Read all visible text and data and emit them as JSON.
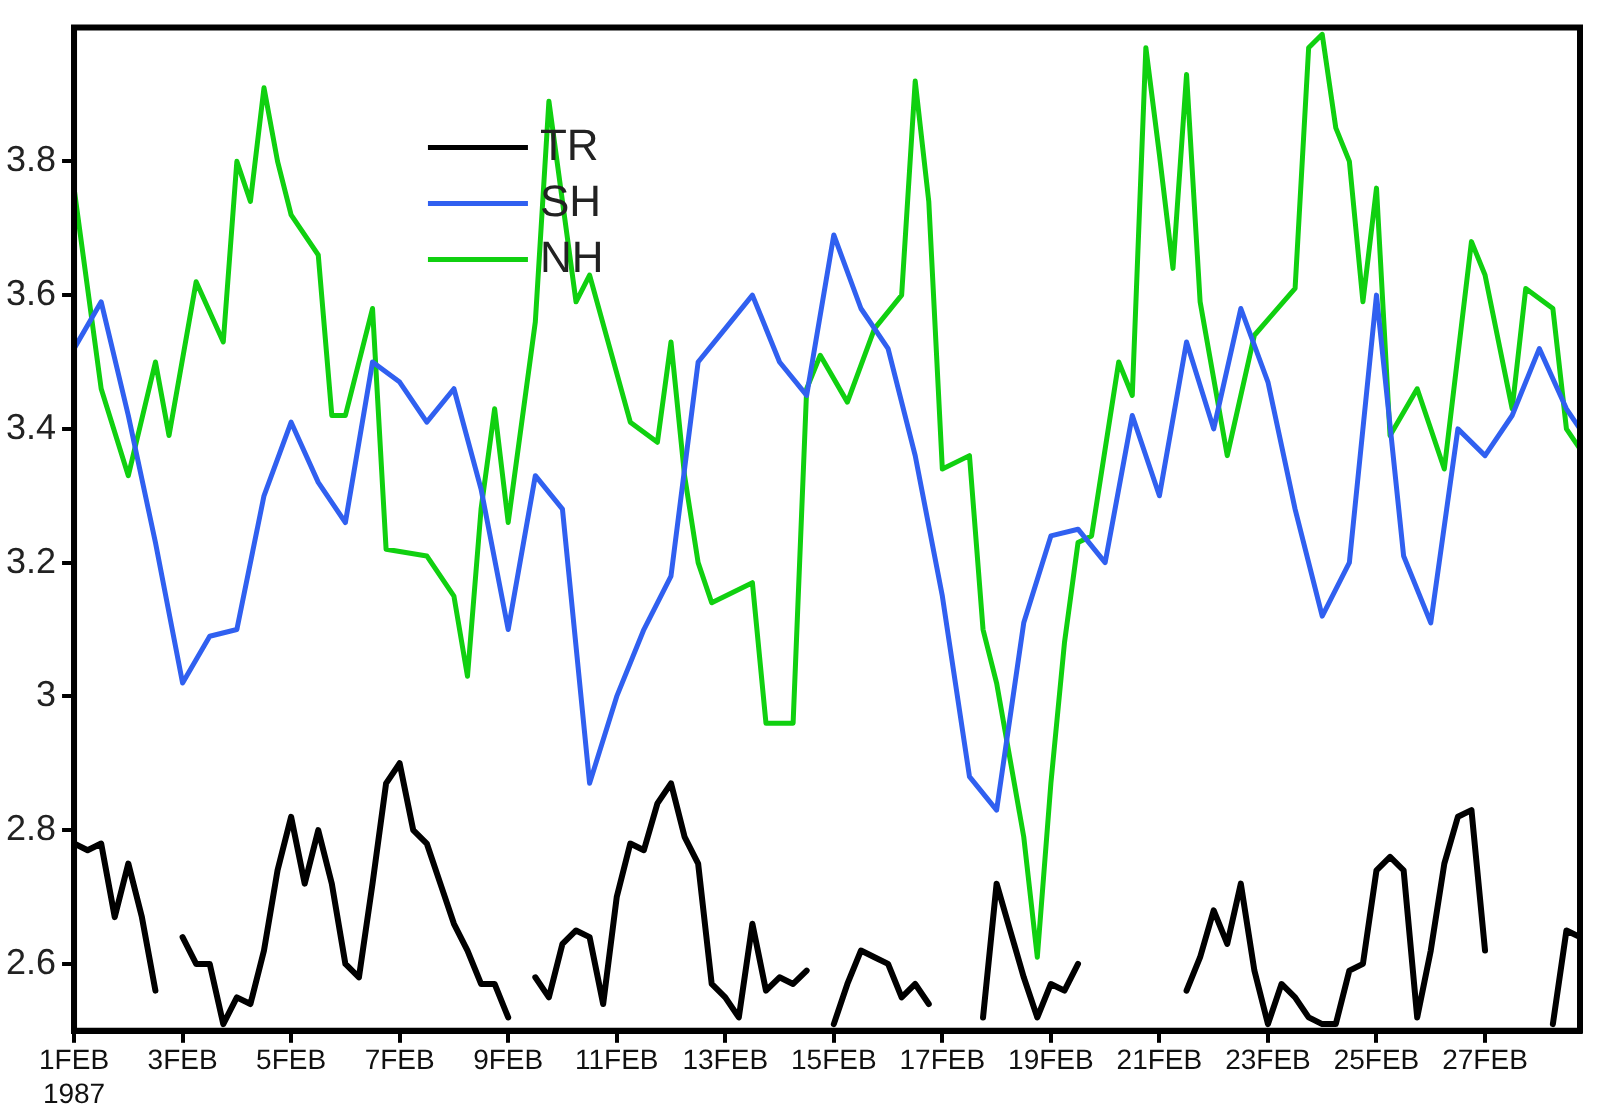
{
  "chart_data": {
    "type": "line",
    "ylim": [
      2.5,
      4.0
    ],
    "yticks": [
      2.6,
      2.8,
      3,
      3.2,
      3.4,
      3.6,
      3.8
    ],
    "xlim": [
      "1987-02-01T00:00",
      "1987-02-28T18:00"
    ],
    "xticks": [
      {
        "value": "1987-02-01",
        "label": "1FEB\n1987"
      },
      {
        "value": "1987-02-03",
        "label": "3FEB"
      },
      {
        "value": "1987-02-05",
        "label": "5FEB"
      },
      {
        "value": "1987-02-07",
        "label": "7FEB"
      },
      {
        "value": "1987-02-09",
        "label": "9FEB"
      },
      {
        "value": "1987-02-11",
        "label": "11FEB"
      },
      {
        "value": "1987-02-13",
        "label": "13FEB"
      },
      {
        "value": "1987-02-15",
        "label": "15FEB"
      },
      {
        "value": "1987-02-17",
        "label": "17FEB"
      },
      {
        "value": "1987-02-19",
        "label": "19FEB"
      },
      {
        "value": "1987-02-21",
        "label": "21FEB"
      },
      {
        "value": "1987-02-23",
        "label": "23FEB"
      },
      {
        "value": "1987-02-25",
        "label": "25FEB"
      },
      {
        "value": "1987-02-27",
        "label": "27FEB"
      }
    ],
    "legend": "top left",
    "marker": "none",
    "line_style": "solid",
    "series": [
      {
        "name": "TR",
        "color": "#000000",
        "x": [
          "1987-02-01T00:00",
          "1987-02-01T06:00",
          "1987-02-01T12:00",
          "1987-02-01T18:00",
          "1987-02-02T00:00",
          "1987-02-02T06:00",
          "1987-02-02T12:00",
          "1987-02-02T18:00",
          "1987-02-03T00:00",
          "1987-02-03T06:00",
          "1987-02-03T12:00",
          "1987-02-03T18:00",
          "1987-02-04T00:00",
          "1987-02-04T06:00",
          "1987-02-04T12:00",
          "1987-02-04T18:00",
          "1987-02-05T00:00",
          "1987-02-05T06:00",
          "1987-02-05T12:00",
          "1987-02-05T18:00",
          "1987-02-06T00:00",
          "1987-02-06T06:00",
          "1987-02-06T12:00",
          "1987-02-06T18:00",
          "1987-02-07T00:00",
          "1987-02-07T06:00",
          "1987-02-07T12:00",
          "1987-02-07T18:00",
          "1987-02-08T00:00",
          "1987-02-08T06:00",
          "1987-02-08T12:00",
          "1987-02-08T18:00",
          "1987-02-09T00:00",
          "1987-02-09T06:00",
          "1987-02-09T12:00",
          "1987-02-09T18:00",
          "1987-02-10T00:00",
          "1987-02-10T06:00",
          "1987-02-10T12:00",
          "1987-02-10T18:00",
          "1987-02-11T00:00",
          "1987-02-11T06:00",
          "1987-02-11T12:00",
          "1987-02-11T18:00",
          "1987-02-12T00:00",
          "1987-02-12T06:00",
          "1987-02-12T12:00",
          "1987-02-12T18:00",
          "1987-02-13T00:00",
          "1987-02-13T06:00",
          "1987-02-13T12:00",
          "1987-02-13T18:00",
          "1987-02-14T00:00",
          "1987-02-14T06:00",
          "1987-02-14T12:00",
          "1987-02-14T18:00",
          "1987-02-15T00:00",
          "1987-02-15T06:00",
          "1987-02-15T12:00",
          "1987-02-15T18:00",
          "1987-02-16T00:00",
          "1987-02-16T06:00",
          "1987-02-16T12:00",
          "1987-02-16T18:00",
          "1987-02-17T00:00",
          "1987-02-17T18:00",
          "1987-02-18T00:00",
          "1987-02-18T06:00",
          "1987-02-18T12:00",
          "1987-02-18T18:00",
          "1987-02-19T00:00",
          "1987-02-19T06:00",
          "1987-02-19T12:00",
          "1987-02-19T18:00",
          "1987-02-21T12:00",
          "1987-02-21T18:00",
          "1987-02-22T00:00",
          "1987-02-22T06:00",
          "1987-02-22T12:00",
          "1987-02-22T18:00",
          "1987-02-23T00:00",
          "1987-02-23T06:00",
          "1987-02-23T12:00",
          "1987-02-23T18:00",
          "1987-02-24T00:00",
          "1987-02-24T06:00",
          "1987-02-24T12:00",
          "1987-02-24T18:00",
          "1987-02-25T00:00",
          "1987-02-25T06:00",
          "1987-02-25T12:00",
          "1987-02-25T18:00",
          "1987-02-26T00:00",
          "1987-02-26T06:00",
          "1987-02-26T12:00",
          "1987-02-26T18:00",
          "1987-02-27T00:00",
          "1987-02-27T06:00",
          "1987-02-28T06:00",
          "1987-02-28T12:00",
          "1987-02-28T18:00"
        ],
        "values": [
          2.78,
          2.77,
          2.78,
          2.67,
          2.75,
          2.67,
          2.56,
          null,
          2.64,
          2.6,
          2.6,
          2.51,
          2.55,
          2.54,
          2.62,
          2.74,
          2.82,
          2.72,
          2.8,
          2.72,
          2.6,
          2.58,
          2.72,
          2.87,
          2.9,
          2.8,
          2.78,
          2.72,
          2.66,
          2.62,
          2.57,
          2.57,
          2.52,
          null,
          2.58,
          2.55,
          2.63,
          2.65,
          2.64,
          2.54,
          2.7,
          2.78,
          2.77,
          2.84,
          2.87,
          2.79,
          2.75,
          2.57,
          2.55,
          2.52,
          2.66,
          2.56,
          2.58,
          2.57,
          2.59,
          null,
          2.51,
          2.57,
          2.62,
          2.61,
          2.6,
          2.55,
          2.57,
          2.54,
          null,
          2.52,
          2.72,
          2.65,
          2.58,
          2.52,
          2.57,
          2.56,
          2.6,
          null,
          2.56,
          2.61,
          2.68,
          2.63,
          2.72,
          2.59,
          2.51,
          2.57,
          2.55,
          2.52,
          2.51,
          2.51,
          2.59,
          2.6,
          2.74,
          2.76,
          2.74,
          2.52,
          2.62,
          2.75,
          2.82,
          2.83,
          2.62,
          null,
          2.51,
          2.65,
          2.64
        ]
      },
      {
        "name": "SH",
        "color": "#3060f0",
        "x": [
          "1987-02-01T00:00",
          "1987-02-01T12:00",
          "1987-02-02T00:00",
          "1987-02-02T12:00",
          "1987-02-03T00:00",
          "1987-02-03T12:00",
          "1987-02-04T00:00",
          "1987-02-04T12:00",
          "1987-02-05T00:00",
          "1987-02-05T12:00",
          "1987-02-06T00:00",
          "1987-02-06T12:00",
          "1987-02-07T00:00",
          "1987-02-07T12:00",
          "1987-02-08T00:00",
          "1987-02-08T12:00",
          "1987-02-09T00:00",
          "1987-02-09T12:00",
          "1987-02-10T00:00",
          "1987-02-10T12:00",
          "1987-02-11T00:00",
          "1987-02-11T12:00",
          "1987-02-12T00:00",
          "1987-02-12T12:00",
          "1987-02-13T00:00",
          "1987-02-13T12:00",
          "1987-02-14T00:00",
          "1987-02-14T12:00",
          "1987-02-15T00:00",
          "1987-02-15T12:00",
          "1987-02-16T00:00",
          "1987-02-16T12:00",
          "1987-02-17T00:00",
          "1987-02-17T12:00",
          "1987-02-18T00:00",
          "1987-02-18T12:00",
          "1987-02-19T00:00",
          "1987-02-19T12:00",
          "1987-02-20T00:00",
          "1987-02-20T12:00",
          "1987-02-21T00:00",
          "1987-02-21T12:00",
          "1987-02-22T00:00",
          "1987-02-22T12:00",
          "1987-02-23T00:00",
          "1987-02-23T12:00",
          "1987-02-24T00:00",
          "1987-02-24T12:00",
          "1987-02-25T00:00",
          "1987-02-25T12:00",
          "1987-02-26T00:00",
          "1987-02-26T12:00",
          "1987-02-27T00:00",
          "1987-02-27T12:00",
          "1987-02-28T00:00",
          "1987-02-28T12:00",
          "1987-02-28T18:00"
        ],
        "values": [
          3.52,
          3.59,
          3.42,
          3.23,
          3.02,
          3.09,
          3.1,
          3.3,
          3.41,
          3.32,
          3.26,
          3.5,
          3.47,
          3.41,
          3.46,
          3.31,
          3.1,
          3.33,
          3.28,
          2.87,
          3.0,
          3.1,
          3.18,
          3.5,
          3.55,
          3.6,
          3.5,
          3.45,
          3.69,
          3.58,
          3.52,
          3.36,
          3.15,
          2.88,
          2.83,
          3.11,
          3.24,
          3.25,
          3.2,
          3.42,
          3.3,
          3.53,
          3.4,
          3.58,
          3.47,
          3.28,
          3.12,
          3.2,
          3.6,
          3.21,
          3.11,
          3.4,
          3.36,
          3.42,
          3.52,
          3.43,
          3.4
        ]
      },
      {
        "name": "NH",
        "color": "#10d010",
        "x": [
          "1987-02-01T00:00",
          "1987-02-01T12:00",
          "1987-02-02T00:00",
          "1987-02-02T12:00",
          "1987-02-02T18:00",
          "1987-02-03T06:00",
          "1987-02-03T18:00",
          "1987-02-04T00:00",
          "1987-02-04T06:00",
          "1987-02-04T12:00",
          "1987-02-04T18:00",
          "1987-02-05T00:00",
          "1987-02-05T12:00",
          "1987-02-05T18:00",
          "1987-02-06T00:00",
          "1987-02-06T12:00",
          "1987-02-06T18:00",
          "1987-02-07T12:00",
          "1987-02-08T00:00",
          "1987-02-08T06:00",
          "1987-02-08T12:00",
          "1987-02-08T18:00",
          "1987-02-09T00:00",
          "1987-02-09T12:00",
          "1987-02-09T18:00",
          "1987-02-10T06:00",
          "1987-02-10T12:00",
          "1987-02-11T06:00",
          "1987-02-11T18:00",
          "1987-02-12T00:00",
          "1987-02-12T06:00",
          "1987-02-12T12:00",
          "1987-02-12T18:00",
          "1987-02-13T12:00",
          "1987-02-13T18:00",
          "1987-02-14T06:00",
          "1987-02-14T12:00",
          "1987-02-14T18:00",
          "1987-02-15T06:00",
          "1987-02-15T18:00",
          "1987-02-16T06:00",
          "1987-02-16T12:00",
          "1987-02-16T18:00",
          "1987-02-17T00:00",
          "1987-02-17T12:00",
          "1987-02-17T18:00",
          "1987-02-18T00:00",
          "1987-02-18T12:00",
          "1987-02-18T18:00",
          "1987-02-19T00:00",
          "1987-02-19T06:00",
          "1987-02-19T12:00",
          "1987-02-19T18:00",
          "1987-02-20T06:00",
          "1987-02-20T12:00",
          "1987-02-20T18:00",
          "1987-02-21T00:00",
          "1987-02-21T06:00",
          "1987-02-21T12:00",
          "1987-02-21T18:00",
          "1987-02-22T06:00",
          "1987-02-22T18:00",
          "1987-02-23T12:00",
          "1987-02-23T18:00",
          "1987-02-24T00:00",
          "1987-02-24T06:00",
          "1987-02-24T12:00",
          "1987-02-24T18:00",
          "1987-02-25T00:00",
          "1987-02-25T06:00",
          "1987-02-25T18:00",
          "1987-02-26T06:00",
          "1987-02-26T18:00",
          "1987-02-27T00:00",
          "1987-02-27T12:00",
          "1987-02-27T18:00",
          "1987-02-28T06:00",
          "1987-02-28T12:00",
          "1987-02-28T18:00"
        ],
        "values": [
          3.76,
          3.46,
          3.33,
          3.5,
          3.39,
          3.62,
          3.53,
          3.8,
          3.74,
          3.91,
          3.8,
          3.72,
          3.66,
          3.42,
          3.42,
          3.58,
          3.22,
          3.21,
          3.15,
          3.03,
          3.28,
          3.43,
          3.26,
          3.56,
          3.89,
          3.59,
          3.63,
          3.41,
          3.38,
          3.53,
          3.33,
          3.2,
          3.14,
          3.17,
          2.96,
          2.96,
          3.46,
          3.51,
          3.44,
          3.55,
          3.6,
          3.92,
          3.74,
          3.34,
          3.36,
          3.1,
          3.02,
          2.79,
          2.61,
          2.87,
          3.08,
          3.23,
          3.24,
          3.5,
          3.45,
          3.97,
          3.81,
          3.64,
          3.93,
          3.59,
          3.36,
          3.54,
          3.61,
          3.97,
          3.99,
          3.85,
          3.8,
          3.59,
          3.76,
          3.39,
          3.46,
          3.34,
          3.68,
          3.63,
          3.43,
          3.61,
          3.58,
          3.4,
          3.37
        ]
      }
    ]
  }
}
